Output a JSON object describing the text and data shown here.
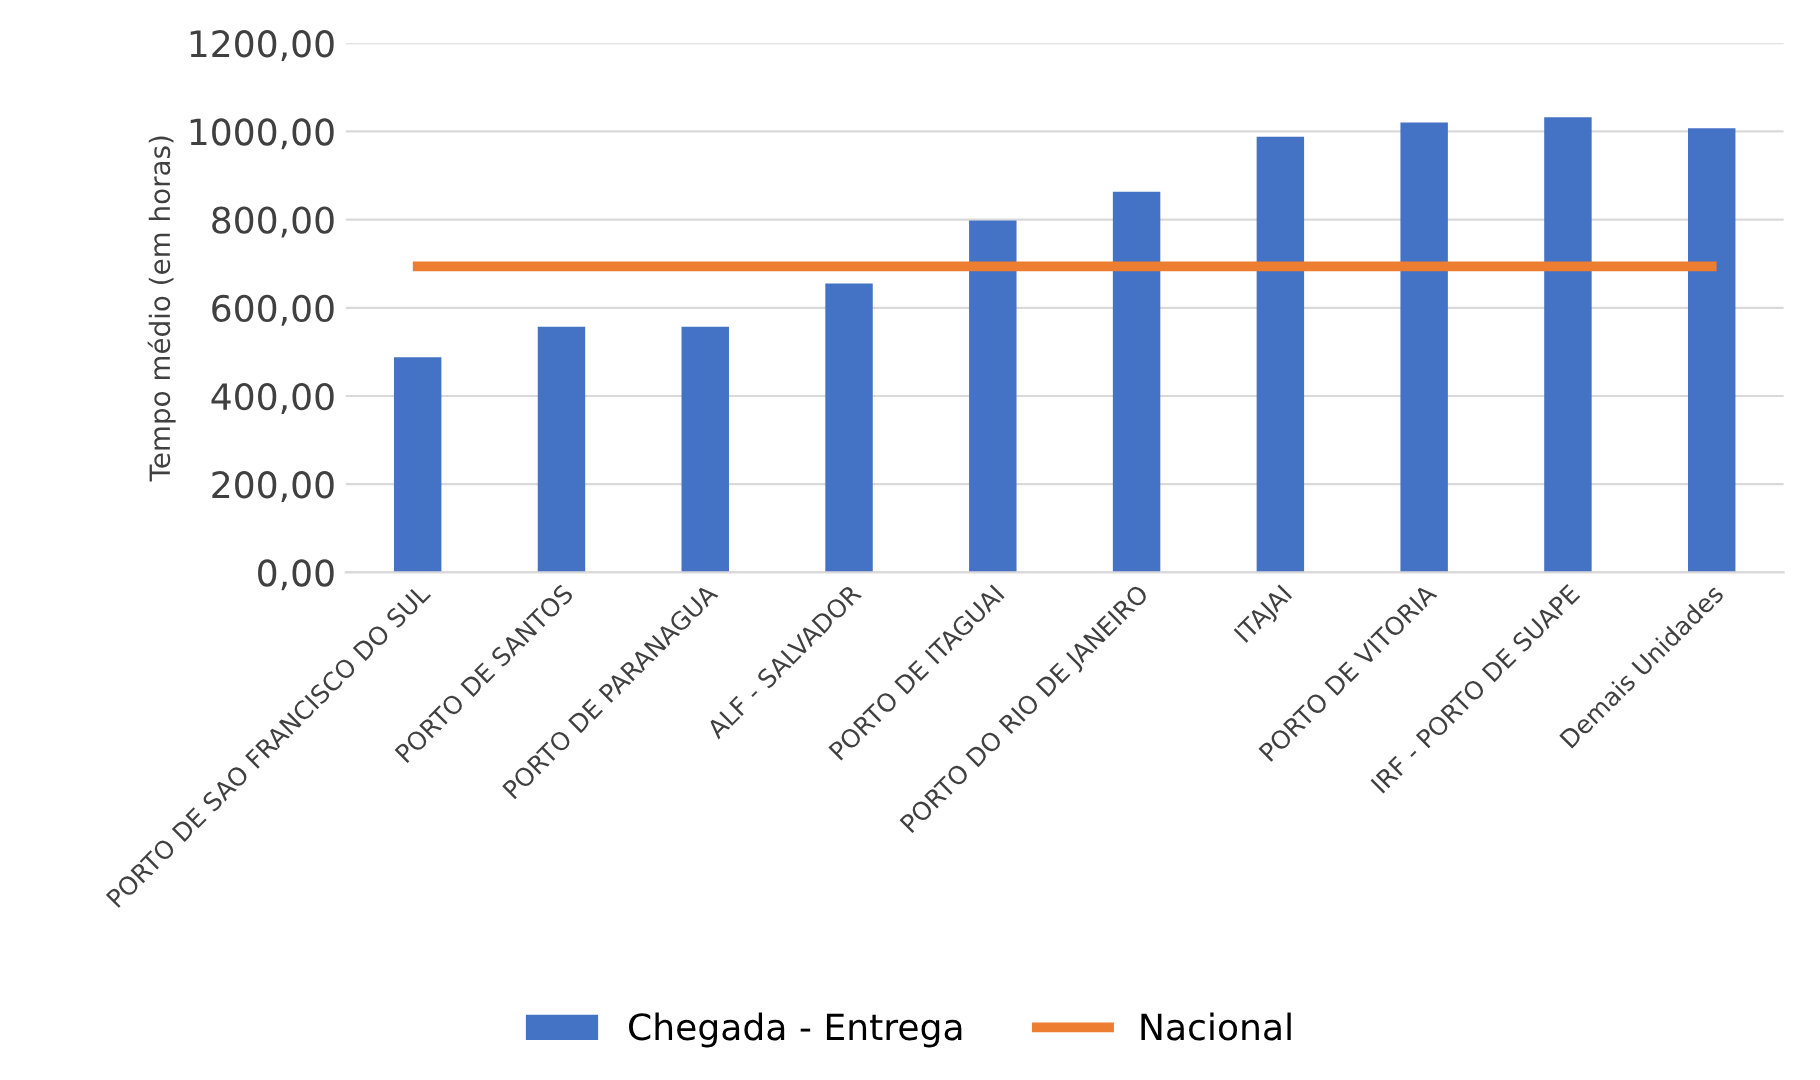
{
  "chart_data": {
    "type": "bar",
    "ylabel": "Tempo médio (em horas)",
    "categories": [
      "PORTO DE SAO FRANCISCO DO SUL",
      "PORTO DE SANTOS",
      "PORTO DE PARANAGUA",
      "ALF - SALVADOR",
      "PORTO DE ITAGUAI",
      "PORTO DO RIO DE JANEIRO",
      "ITAJAI",
      "PORTO DE VITORIA",
      "IRF - PORTO DE SUAPE",
      "Demais Unidades"
    ],
    "series": [
      {
        "name": "Chegada - Entrega",
        "color": "#4472c4",
        "values": [
          488,
          557,
          557,
          655,
          798,
          863,
          988,
          1020,
          1032,
          1007
        ]
      },
      {
        "name": "Nacional",
        "type": "line",
        "color": "#ed7d31",
        "values": [
          694,
          694,
          694,
          694,
          694,
          694,
          694,
          694,
          694,
          694
        ]
      }
    ],
    "ylim": [
      0,
      1200
    ],
    "yticks": [
      {
        "value": 0,
        "label": "0,00"
      },
      {
        "value": 200,
        "label": "200,00"
      },
      {
        "value": 400,
        "label": "400,00"
      },
      {
        "value": 600,
        "label": "600,00"
      },
      {
        "value": 800,
        "label": "800,00"
      },
      {
        "value": 1000,
        "label": "1000,00"
      },
      {
        "value": 1200,
        "label": "1200,00"
      }
    ],
    "grid": "y",
    "legend": "bottom",
    "marker": "none",
    "line_style": "solid"
  }
}
